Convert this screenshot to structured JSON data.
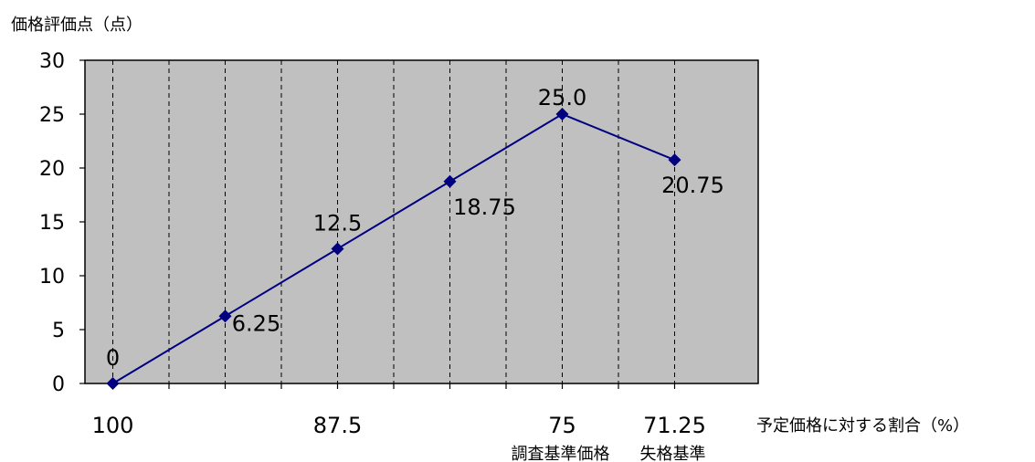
{
  "chart_data": {
    "type": "line",
    "ylabel": "価格評価点（点）",
    "xlabel": "予定価格に対する割合（%）",
    "ylim": [
      0,
      30
    ],
    "yticks": [
      0,
      5,
      10,
      15,
      20,
      25,
      30
    ],
    "x_categories": [
      "100",
      "",
      "",
      "",
      "",
      "",
      "",
      "",
      "",
      "",
      ""
    ],
    "x_tick_labels": [
      {
        "index": 1,
        "text": "100"
      },
      {
        "index": 5,
        "text": "87.5"
      },
      {
        "index": 9,
        "text": "75",
        "sub": "調査基準価格"
      },
      {
        "index": 11,
        "text": "71.25",
        "sub": "失格基準"
      }
    ],
    "series": [
      {
        "color": "#000080",
        "points": [
          {
            "index": 1,
            "y": 0,
            "label": "0"
          },
          {
            "index": 3,
            "y": 6.25,
            "label": "6.25"
          },
          {
            "index": 5,
            "y": 12.5,
            "label": "12.5"
          },
          {
            "index": 7,
            "y": 18.75,
            "label": "18.75"
          },
          {
            "index": 9,
            "y": 25.0,
            "label": "25.0"
          },
          {
            "index": 11,
            "y": 20.75,
            "label": "20.75"
          }
        ]
      }
    ],
    "grid": "vertical-dashed",
    "plot_background": "#c0c0c0"
  }
}
